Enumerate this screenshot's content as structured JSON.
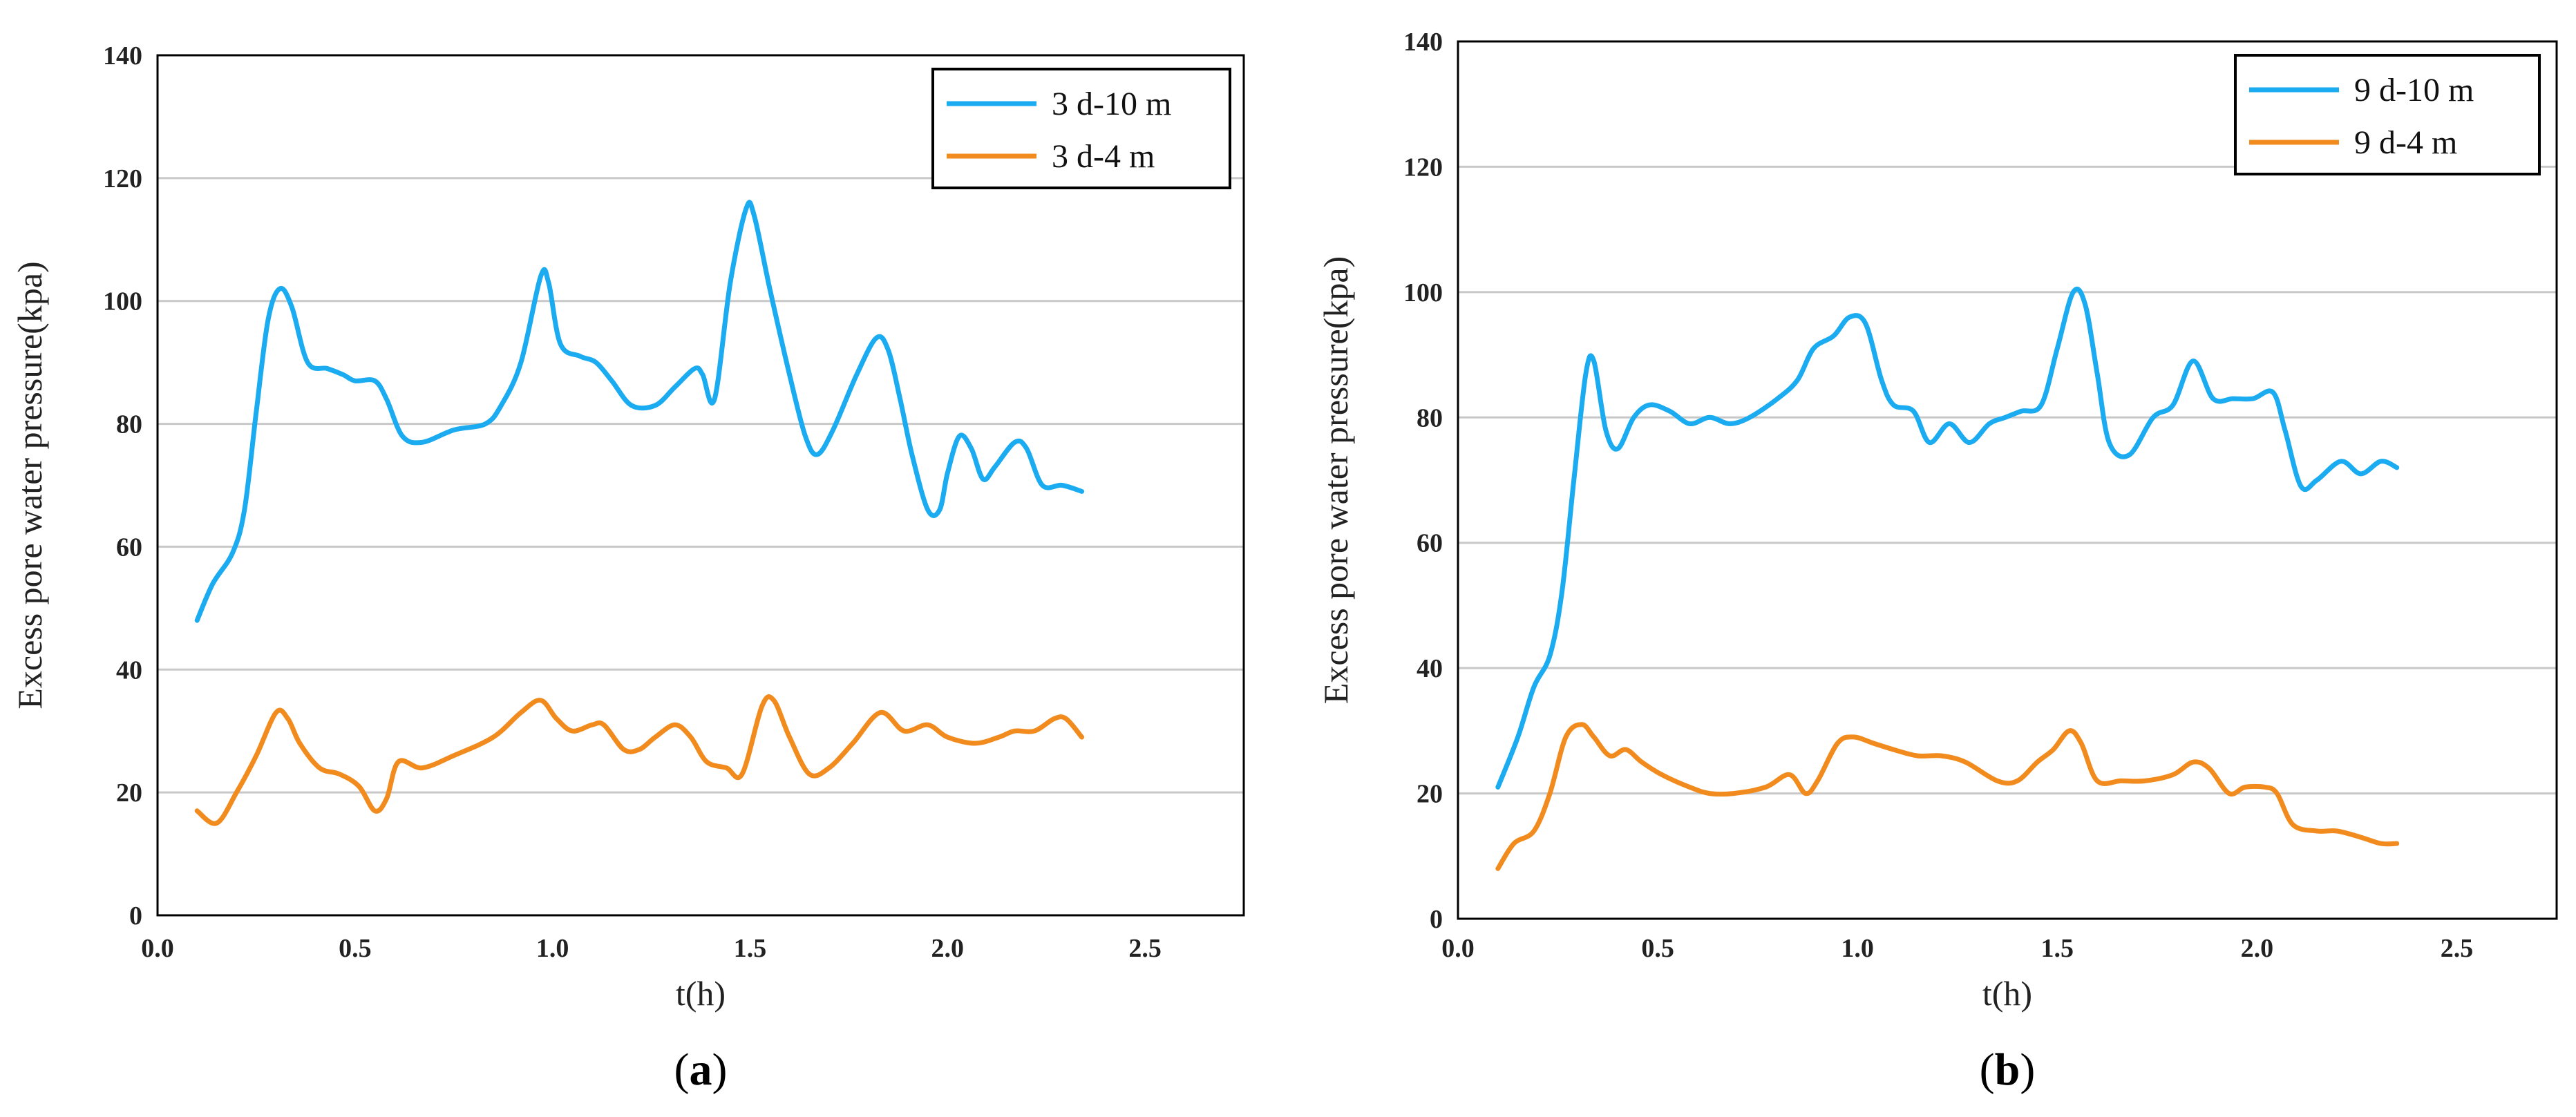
{
  "chart_data": [
    {
      "type": "line",
      "caption": "a",
      "xlabel": "t(h)",
      "ylabel": "Excess pore water pressure(kpa)",
      "xlim": [
        0,
        2.75
      ],
      "ylim": [
        0,
        140
      ],
      "xticks": [
        "0.0",
        "0.5",
        "1.0",
        "1.5",
        "2.0",
        "2.5"
      ],
      "yticks": [
        "0",
        "20",
        "40",
        "60",
        "80",
        "100",
        "120",
        "140"
      ],
      "legend_position": "top-right",
      "series": [
        {
          "name": "3 d-10 m",
          "color": "#1aabf0",
          "points": [
            [
              0.1,
              48
            ],
            [
              0.14,
              54
            ],
            [
              0.19,
              59
            ],
            [
              0.22,
              66
            ],
            [
              0.25,
              82
            ],
            [
              0.28,
              97
            ],
            [
              0.31,
              102
            ],
            [
              0.34,
              99
            ],
            [
              0.38,
              90
            ],
            [
              0.43,
              89
            ],
            [
              0.47,
              88
            ],
            [
              0.5,
              87
            ],
            [
              0.55,
              87
            ],
            [
              0.58,
              84
            ],
            [
              0.62,
              78
            ],
            [
              0.67,
              77
            ],
            [
              0.75,
              79
            ],
            [
              0.83,
              80
            ],
            [
              0.87,
              83
            ],
            [
              0.92,
              90
            ],
            [
              0.97,
              104
            ],
            [
              0.99,
              103
            ],
            [
              1.02,
              93
            ],
            [
              1.07,
              91
            ],
            [
              1.11,
              90
            ],
            [
              1.15,
              87
            ],
            [
              1.2,
              83
            ],
            [
              1.26,
              83
            ],
            [
              1.31,
              86
            ],
            [
              1.36,
              89
            ],
            [
              1.38,
              88
            ],
            [
              1.41,
              84
            ],
            [
              1.45,
              103
            ],
            [
              1.49,
              115
            ],
            [
              1.51,
              114
            ],
            [
              1.55,
              102
            ],
            [
              1.6,
              88
            ],
            [
              1.64,
              78
            ],
            [
              1.67,
              75
            ],
            [
              1.71,
              79
            ],
            [
              1.77,
              88
            ],
            [
              1.82,
              94
            ],
            [
              1.85,
              92
            ],
            [
              1.88,
              84
            ],
            [
              1.91,
              75
            ],
            [
              1.95,
              66
            ],
            [
              1.98,
              66
            ],
            [
              2.0,
              72
            ],
            [
              2.03,
              78
            ],
            [
              2.06,
              76
            ],
            [
              2.09,
              71
            ],
            [
              2.12,
              73
            ],
            [
              2.17,
              77
            ],
            [
              2.2,
              76
            ],
            [
              2.24,
              70
            ],
            [
              2.29,
              70
            ],
            [
              2.34,
              69
            ]
          ]
        },
        {
          "name": "3 d-4 m",
          "color": "#f28b1e",
          "points": [
            [
              0.1,
              17
            ],
            [
              0.15,
              15
            ],
            [
              0.2,
              20
            ],
            [
              0.25,
              26
            ],
            [
              0.3,
              33
            ],
            [
              0.33,
              32
            ],
            [
              0.36,
              28
            ],
            [
              0.41,
              24
            ],
            [
              0.46,
              23
            ],
            [
              0.51,
              21
            ],
            [
              0.55,
              17
            ],
            [
              0.58,
              19
            ],
            [
              0.61,
              25
            ],
            [
              0.67,
              24
            ],
            [
              0.75,
              26
            ],
            [
              0.85,
              29
            ],
            [
              0.92,
              33
            ],
            [
              0.97,
              35
            ],
            [
              1.01,
              32
            ],
            [
              1.05,
              30
            ],
            [
              1.1,
              31
            ],
            [
              1.13,
              31
            ],
            [
              1.18,
              27
            ],
            [
              1.22,
              27
            ],
            [
              1.26,
              29
            ],
            [
              1.31,
              31
            ],
            [
              1.35,
              29
            ],
            [
              1.39,
              25
            ],
            [
              1.44,
              24
            ],
            [
              1.48,
              23
            ],
            [
              1.53,
              34
            ],
            [
              1.56,
              35
            ],
            [
              1.6,
              29
            ],
            [
              1.65,
              23
            ],
            [
              1.7,
              24
            ],
            [
              1.76,
              28
            ],
            [
              1.83,
              33
            ],
            [
              1.89,
              30
            ],
            [
              1.95,
              31
            ],
            [
              2.0,
              29
            ],
            [
              2.07,
              28
            ],
            [
              2.13,
              29
            ],
            [
              2.17,
              30
            ],
            [
              2.22,
              30
            ],
            [
              2.27,
              32
            ],
            [
              2.3,
              32
            ],
            [
              2.34,
              29
            ]
          ]
        }
      ]
    },
    {
      "type": "line",
      "caption": "b",
      "xlabel": "t(h)",
      "ylabel": "Excess pore water pressure(kpa)",
      "xlim": [
        0,
        2.75
      ],
      "ylim": [
        0,
        140
      ],
      "xticks": [
        "0.0",
        "0.5",
        "1.0",
        "1.5",
        "2.0",
        "2.5"
      ],
      "yticks": [
        "0",
        "20",
        "40",
        "60",
        "80",
        "100",
        "120",
        "140"
      ],
      "legend_position": "top-right",
      "series": [
        {
          "name": "9 d-10 m",
          "color": "#1aabf0",
          "points": [
            [
              0.1,
              21
            ],
            [
              0.15,
              29
            ],
            [
              0.19,
              37
            ],
            [
              0.23,
              42
            ],
            [
              0.26,
              52
            ],
            [
              0.29,
              70
            ],
            [
              0.32,
              87
            ],
            [
              0.34,
              89
            ],
            [
              0.37,
              78
            ],
            [
              0.4,
              75
            ],
            [
              0.44,
              80
            ],
            [
              0.48,
              82
            ],
            [
              0.53,
              81
            ],
            [
              0.58,
              79
            ],
            [
              0.63,
              80
            ],
            [
              0.68,
              79
            ],
            [
              0.73,
              80
            ],
            [
              0.8,
              83
            ],
            [
              0.85,
              86
            ],
            [
              0.89,
              91
            ],
            [
              0.94,
              93
            ],
            [
              0.98,
              96
            ],
            [
              1.02,
              95
            ],
            [
              1.06,
              86
            ],
            [
              1.09,
              82
            ],
            [
              1.14,
              81
            ],
            [
              1.18,
              76
            ],
            [
              1.23,
              79
            ],
            [
              1.28,
              76
            ],
            [
              1.33,
              79
            ],
            [
              1.37,
              80
            ],
            [
              1.41,
              81
            ],
            [
              1.46,
              82
            ],
            [
              1.5,
              91
            ],
            [
              1.54,
              100
            ],
            [
              1.57,
              98
            ],
            [
              1.6,
              87
            ],
            [
              1.63,
              76
            ],
            [
              1.68,
              74
            ],
            [
              1.74,
              80
            ],
            [
              1.79,
              82
            ],
            [
              1.84,
              89
            ],
            [
              1.89,
              83
            ],
            [
              1.94,
              83
            ],
            [
              1.99,
              83
            ],
            [
              2.04,
              84
            ],
            [
              2.07,
              78
            ],
            [
              2.11,
              69
            ],
            [
              2.15,
              70
            ],
            [
              2.21,
              73
            ],
            [
              2.26,
              71
            ],
            [
              2.31,
              73
            ],
            [
              2.35,
              72
            ]
          ]
        },
        {
          "name": "9 d-4 m",
          "color": "#f28b1e",
          "points": [
            [
              0.1,
              8
            ],
            [
              0.14,
              12
            ],
            [
              0.19,
              14
            ],
            [
              0.23,
              20
            ],
            [
              0.27,
              29
            ],
            [
              0.31,
              31
            ],
            [
              0.34,
              29
            ],
            [
              0.38,
              26
            ],
            [
              0.42,
              27
            ],
            [
              0.46,
              25
            ],
            [
              0.51,
              23
            ],
            [
              0.58,
              21
            ],
            [
              0.63,
              20
            ],
            [
              0.69,
              20
            ],
            [
              0.77,
              21
            ],
            [
              0.83,
              23
            ],
            [
              0.87,
              20
            ],
            [
              0.9,
              22
            ],
            [
              0.95,
              28
            ],
            [
              0.99,
              29
            ],
            [
              1.04,
              28
            ],
            [
              1.09,
              27
            ],
            [
              1.15,
              26
            ],
            [
              1.21,
              26
            ],
            [
              1.27,
              25
            ],
            [
              1.35,
              22
            ],
            [
              1.4,
              22
            ],
            [
              1.45,
              25
            ],
            [
              1.49,
              27
            ],
            [
              1.53,
              30
            ],
            [
              1.56,
              28
            ],
            [
              1.6,
              22
            ],
            [
              1.66,
              22
            ],
            [
              1.72,
              22
            ],
            [
              1.79,
              23
            ],
            [
              1.84,
              25
            ],
            [
              1.88,
              24
            ],
            [
              1.93,
              20
            ],
            [
              1.97,
              21
            ],
            [
              2.02,
              21
            ],
            [
              2.05,
              20
            ],
            [
              2.09,
              15
            ],
            [
              2.15,
              14
            ],
            [
              2.2,
              14
            ],
            [
              2.26,
              13
            ],
            [
              2.31,
              12
            ],
            [
              2.35,
              12
            ]
          ]
        }
      ]
    }
  ]
}
